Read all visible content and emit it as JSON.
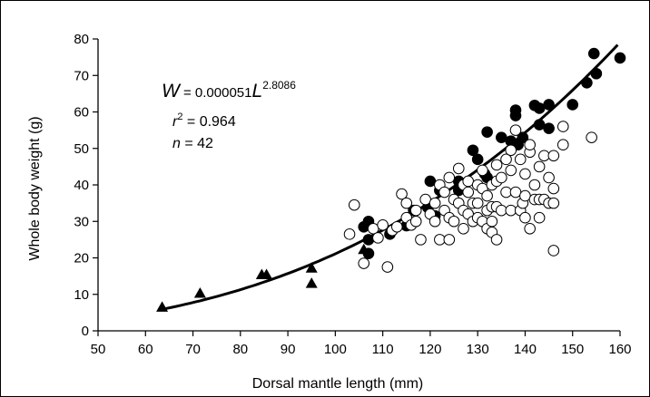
{
  "chart_data": {
    "type": "scatter",
    "xlabel": "Dorsal mantle length (mm)",
    "ylabel": "Whole body weight (g)",
    "xlim": [
      50,
      160
    ],
    "ylim": [
      0,
      80
    ],
    "xticks": [
      "50",
      "60",
      "70",
      "80",
      "90",
      "100",
      "110",
      "120",
      "130",
      "140",
      "150",
      "160"
    ],
    "yticks": [
      "0",
      "10",
      "20",
      "30",
      "40",
      "50",
      "60",
      "70",
      "80"
    ],
    "grid": false,
    "annotation": {
      "eq_w": "W",
      "eq_eq": " = 0.000051",
      "eq_l": "L",
      "eq_exp": "2.8086",
      "r2_r": "r",
      "r2_sup": "2",
      "r2_val": " = 0.964",
      "n_n": "n",
      "n_val": " = 42"
    },
    "fit": {
      "a": 5.1e-05,
      "b": 2.8086,
      "x_range": [
        63.5,
        160
      ]
    },
    "series": [
      {
        "marker": "triangle",
        "points": [
          [
            63.5,
            6.5
          ],
          [
            71.5,
            10.3
          ],
          [
            84.5,
            15.4
          ],
          [
            85.5,
            15.4
          ],
          [
            95,
            17.2
          ],
          [
            95,
            13
          ],
          [
            106,
            22.3
          ]
        ]
      },
      {
        "marker": "filled-circle",
        "points": [
          [
            106,
            28.5
          ],
          [
            107,
            25
          ],
          [
            107,
            30
          ],
          [
            107,
            21.2
          ],
          [
            111.5,
            26.5
          ],
          [
            115,
            28.8
          ],
          [
            116.5,
            33
          ],
          [
            119.5,
            33.8
          ],
          [
            120,
            41
          ],
          [
            121,
            31.5
          ],
          [
            122,
            38.5
          ],
          [
            126,
            38.5
          ],
          [
            126,
            41
          ],
          [
            129,
            49.5
          ],
          [
            130,
            47
          ],
          [
            131.5,
            43
          ],
          [
            132,
            42
          ],
          [
            132,
            54.5
          ],
          [
            135,
            53
          ],
          [
            137,
            52
          ],
          [
            138,
            60.5
          ],
          [
            138,
            59
          ],
          [
            138.5,
            51
          ],
          [
            139.5,
            53
          ],
          [
            142,
            61.8
          ],
          [
            143,
            61
          ],
          [
            143,
            56.5
          ],
          [
            145,
            62
          ],
          [
            145,
            55.5
          ],
          [
            150,
            62
          ],
          [
            153,
            68
          ],
          [
            154.5,
            76
          ],
          [
            155,
            70.5
          ],
          [
            160,
            74.8
          ]
        ]
      },
      {
        "marker": "open-circle",
        "points": [
          [
            103,
            26.5
          ],
          [
            104,
            34.5
          ],
          [
            106,
            18.5
          ],
          [
            108,
            28
          ],
          [
            109,
            25.5
          ],
          [
            110,
            29
          ],
          [
            111,
            17.5
          ],
          [
            112,
            27.5
          ],
          [
            113,
            28.5
          ],
          [
            114,
            37.5
          ],
          [
            115,
            31
          ],
          [
            115,
            35
          ],
          [
            116,
            29
          ],
          [
            117,
            33
          ],
          [
            117,
            30
          ],
          [
            118,
            25
          ],
          [
            119,
            36
          ],
          [
            120,
            32
          ],
          [
            121,
            35
          ],
          [
            121,
            30
          ],
          [
            122,
            40
          ],
          [
            122,
            25
          ],
          [
            123,
            38
          ],
          [
            123,
            33
          ],
          [
            124,
            42
          ],
          [
            124,
            31
          ],
          [
            124,
            25
          ],
          [
            125,
            36
          ],
          [
            125,
            30
          ],
          [
            126,
            44.5
          ],
          [
            126,
            35
          ],
          [
            127,
            40
          ],
          [
            127,
            33
          ],
          [
            127,
            28
          ],
          [
            128,
            38
          ],
          [
            128,
            32
          ],
          [
            128,
            41
          ],
          [
            129,
            30
          ],
          [
            129,
            35
          ],
          [
            130,
            40
          ],
          [
            130,
            35
          ],
          [
            130,
            31
          ],
          [
            131,
            39
          ],
          [
            131,
            30
          ],
          [
            131,
            44
          ],
          [
            132,
            37
          ],
          [
            132,
            33
          ],
          [
            132,
            28
          ],
          [
            133,
            40
          ],
          [
            133,
            34
          ],
          [
            133,
            27
          ],
          [
            133,
            30
          ],
          [
            134,
            25
          ],
          [
            134,
            34
          ],
          [
            134,
            41
          ],
          [
            134,
            45.5
          ],
          [
            135,
            33
          ],
          [
            135,
            42
          ],
          [
            136,
            47
          ],
          [
            136,
            38
          ],
          [
            137,
            49.5
          ],
          [
            137,
            44
          ],
          [
            137,
            33
          ],
          [
            138,
            55
          ],
          [
            138,
            38
          ],
          [
            139,
            47
          ],
          [
            139,
            33
          ],
          [
            139.5,
            35
          ],
          [
            140,
            37
          ],
          [
            140,
            31
          ],
          [
            140,
            43
          ],
          [
            141,
            28
          ],
          [
            141,
            49
          ],
          [
            141,
            51
          ],
          [
            142,
            40
          ],
          [
            142,
            36
          ],
          [
            143,
            36
          ],
          [
            143,
            31
          ],
          [
            143,
            45
          ],
          [
            144,
            48
          ],
          [
            144,
            36
          ],
          [
            145,
            35
          ],
          [
            145,
            42
          ],
          [
            146,
            22
          ],
          [
            146,
            35
          ],
          [
            146,
            39
          ],
          [
            146,
            48
          ],
          [
            148,
            51
          ],
          [
            148,
            56
          ],
          [
            154,
            53
          ]
        ]
      }
    ]
  }
}
